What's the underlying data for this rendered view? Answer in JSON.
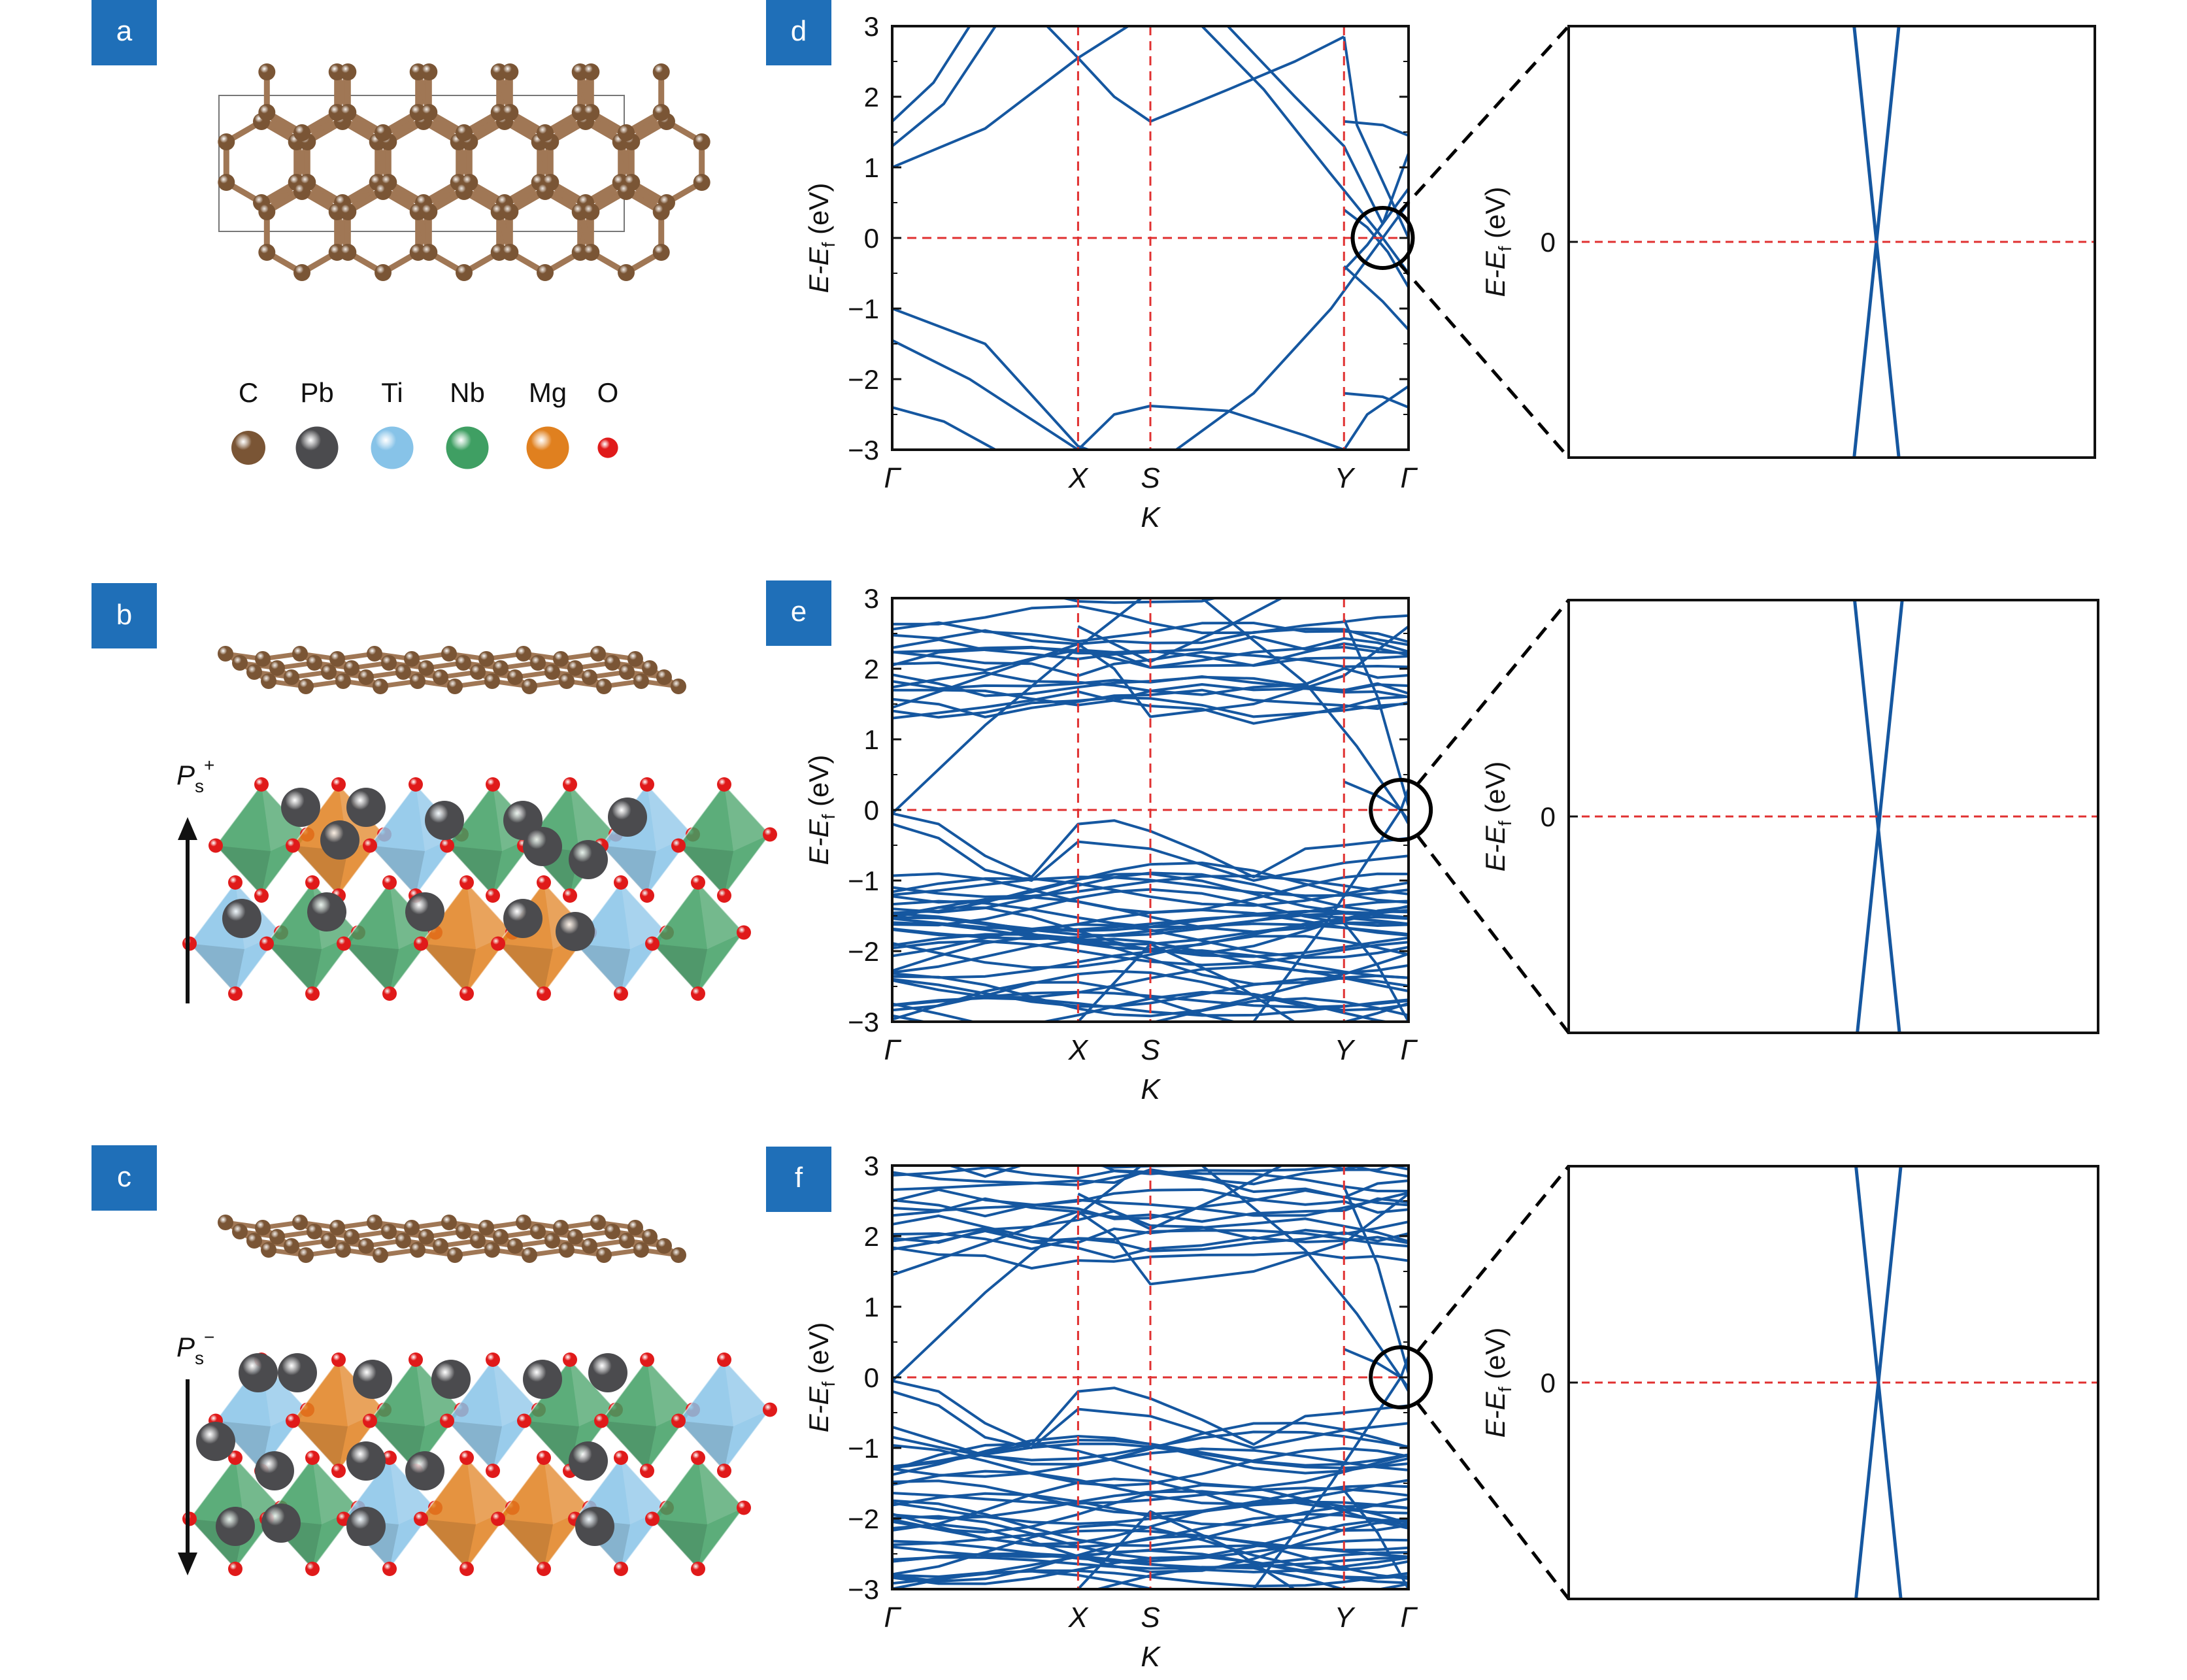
{
  "panel_labels": [
    "a",
    "b",
    "c",
    "d",
    "e",
    "f"
  ],
  "colors": {
    "label_bg": "#1f6fb8",
    "band": "#1557a0",
    "dash_red": "#e03030",
    "carbon": "#7a5535",
    "carbon_bond": "#a07755",
    "pb": "#4b4b4e",
    "ti": "#87c3e8",
    "nb": "#3f9f63",
    "mg": "#e0801f",
    "oxygen": "#e01a1a",
    "axis": "#111111"
  },
  "legend": [
    {
      "symbol": "C",
      "color": "#7a5535",
      "size": 1.0
    },
    {
      "symbol": "Pb",
      "color": "#4b4b4e",
      "size": 1.25
    },
    {
      "symbol": "Ti",
      "color": "#87c3e8",
      "size": 1.25
    },
    {
      "symbol": "Nb",
      "color": "#3f9f63",
      "size": 1.25
    },
    {
      "symbol": "Mg",
      "color": "#e0801f",
      "size": 1.25
    },
    {
      "symbol": "O",
      "color": "#e01a1a",
      "size": 0.6
    }
  ],
  "polarization": {
    "up_main": "P",
    "up_sub": "s",
    "up_sup": "+",
    "down_main": "P",
    "down_sub": "s",
    "down_sup": "−"
  },
  "band_plot": {
    "ylabel_main": "E-E",
    "ylabel_sub": "f",
    "ylabel_unit": " (eV)",
    "xlabel": "K",
    "kpoints": [
      "Γ",
      "X",
      "S",
      "Y",
      "Γ"
    ],
    "kpoint_positions": [
      0,
      0.36,
      0.5,
      0.875,
      1.0
    ],
    "yticks": [
      "3",
      "2",
      "1",
      "0",
      "−1",
      "−2",
      "−3"
    ],
    "ylim": [
      -3,
      3
    ]
  },
  "zoom_plot": {
    "ylabel_main": "E-E",
    "ylabel_sub": "f",
    "ylabel_unit": " (eV)",
    "ytick": "0"
  },
  "chart_data": [
    {
      "type": "line",
      "panel": "d",
      "note_dirac": {
        "k": 0.95,
        "E": 0
      },
      "series": [
        {
          "values": [
            [
              0,
              1.0
            ],
            [
              0.18,
              1.55
            ],
            [
              0.36,
              2.55
            ],
            [
              0.5,
              3.2
            ]
          ]
        },
        {
          "values": [
            [
              0,
              1.3
            ],
            [
              0.1,
              1.9
            ],
            [
              0.2,
              3.0
            ]
          ]
        },
        {
          "values": [
            [
              0,
              1.65
            ],
            [
              0.08,
              2.2
            ],
            [
              0.15,
              3.0
            ]
          ]
        },
        {
          "values": [
            [
              0.3,
              3.0
            ],
            [
              0.36,
              2.55
            ],
            [
              0.43,
              2.0
            ],
            [
              0.5,
              1.65
            ],
            [
              0.65,
              2.1
            ],
            [
              0.78,
              2.5
            ],
            [
              0.875,
              2.85
            ]
          ]
        },
        {
          "values": [
            [
              0.875,
              2.85
            ],
            [
              0.9,
              1.6
            ],
            [
              0.95,
              0.8
            ],
            [
              1.0,
              0.0
            ]
          ]
        },
        {
          "values": [
            [
              0.6,
              3.0
            ],
            [
              0.72,
              2.1
            ],
            [
              0.85,
              0.9
            ],
            [
              0.95,
              0.0
            ],
            [
              1.0,
              -0.5
            ]
          ]
        },
        {
          "values": [
            [
              0.65,
              3.0
            ],
            [
              0.78,
              2.0
            ],
            [
              0.875,
              1.3
            ],
            [
              0.95,
              0.2
            ],
            [
              1.0,
              1.2
            ]
          ]
        },
        {
          "values": [
            [
              0.875,
              1.65
            ],
            [
              0.95,
              1.6
            ],
            [
              1.0,
              1.45
            ]
          ]
        },
        {
          "values": [
            [
              0.875,
              0.4
            ],
            [
              0.92,
              0.15
            ],
            [
              0.96,
              -0.2
            ],
            [
              1.0,
              -0.7
            ]
          ]
        },
        {
          "values": [
            [
              0.875,
              -0.45
            ],
            [
              0.92,
              -0.1
            ],
            [
              0.96,
              0.3
            ],
            [
              1.0,
              0.7
            ]
          ]
        },
        {
          "values": [
            [
              0,
              -1.0
            ],
            [
              0.18,
              -1.5
            ],
            [
              0.36,
              -2.95
            ],
            [
              0.42,
              -3.1
            ]
          ]
        },
        {
          "values": [
            [
              0,
              -1.45
            ],
            [
              0.15,
              -2.0
            ],
            [
              0.36,
              -3.0
            ]
          ]
        },
        {
          "values": [
            [
              0,
              -2.4
            ],
            [
              0.1,
              -2.6
            ],
            [
              0.2,
              -3.0
            ]
          ]
        },
        {
          "values": [
            [
              0.36,
              -3.0
            ],
            [
              0.43,
              -2.5
            ],
            [
              0.5,
              -2.38
            ],
            [
              0.65,
              -2.45
            ],
            [
              0.8,
              -2.8
            ],
            [
              0.875,
              -3.0
            ]
          ]
        },
        {
          "values": [
            [
              0.55,
              -3.0
            ],
            [
              0.7,
              -2.2
            ],
            [
              0.85,
              -1.0
            ],
            [
              0.95,
              0.0
            ],
            [
              1.0,
              0.5
            ]
          ]
        },
        {
          "values": [
            [
              0.875,
              -0.4
            ],
            [
              0.95,
              -0.9
            ],
            [
              1.0,
              -1.3
            ]
          ]
        },
        {
          "values": [
            [
              0.875,
              -2.2
            ],
            [
              0.95,
              -2.25
            ],
            [
              1.0,
              -2.4
            ]
          ]
        },
        {
          "values": [
            [
              0.875,
              -3.0
            ],
            [
              0.92,
              -2.5
            ],
            [
              1.0,
              -2.1
            ]
          ]
        }
      ]
    },
    {
      "type": "line",
      "panel": "e",
      "note_dirac": {
        "k": 0.985,
        "E": 0
      },
      "series_generated": true
    },
    {
      "type": "line",
      "panel": "f",
      "note_dirac": {
        "k": 0.985,
        "E": 0
      },
      "series_generated": true
    },
    {
      "type": "line",
      "panel": "zoom",
      "series": [
        {
          "values": [
            [
              -1,
              1
            ],
            [
              1,
              -1
            ]
          ]
        },
        {
          "values": [
            [
              -1,
              -1
            ],
            [
              1,
              1
            ]
          ]
        }
      ]
    }
  ]
}
